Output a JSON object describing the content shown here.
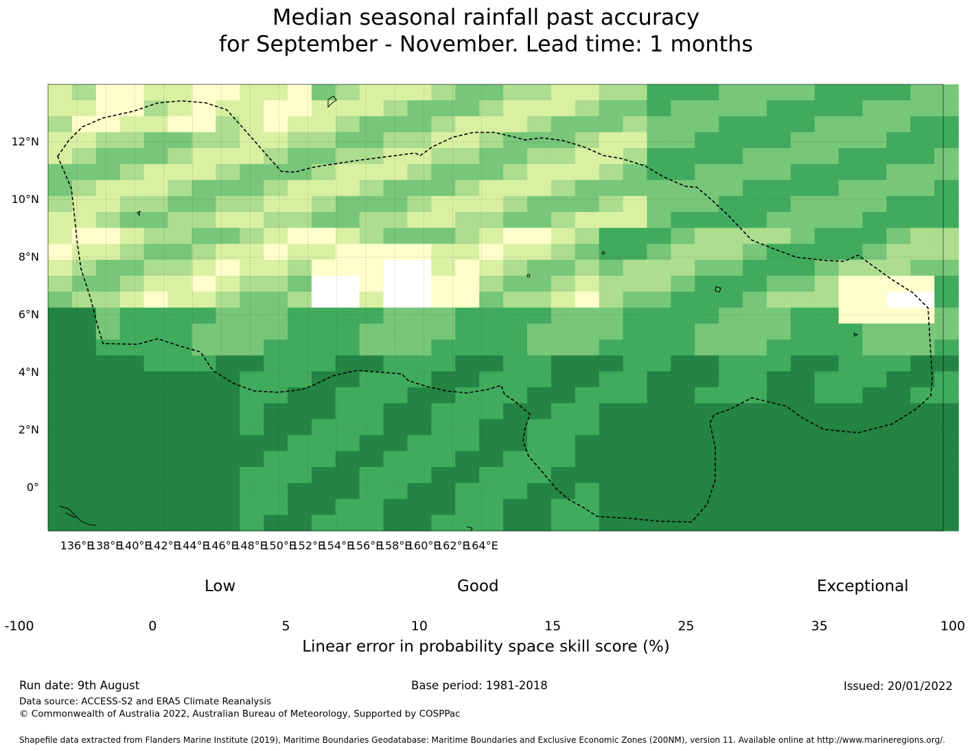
{
  "title": {
    "line1": "Median seasonal rainfall past accuracy",
    "line2": "for September - November. Lead time: 1 months"
  },
  "map": {
    "x_ticks": [
      "136°E",
      "138°E",
      "140°E",
      "142°E",
      "144°E",
      "146°E",
      "148°E",
      "150°E",
      "152°E",
      "154°E",
      "156°E",
      "158°E",
      "160°E",
      "162°E",
      "164°E"
    ],
    "y_ticks": [
      "12°N",
      "10°N",
      "8°N",
      "6°N",
      "4°N",
      "2°N",
      "0°"
    ],
    "grid": true
  },
  "colorbar": {
    "categories": {
      "low": "Low",
      "good": "Good",
      "exceptional": "Exceptional"
    },
    "labels": [
      "-100",
      "0",
      "5",
      "10",
      "15",
      "25",
      "35",
      "100"
    ],
    "colors": [
      "#ffffff",
      "#ffffcc",
      "#d9f0a3",
      "#addd8e",
      "#78c679",
      "#41ab5d",
      "#238443"
    ],
    "title": "Linear error in probability space skill score (%)"
  },
  "footer": {
    "run_date": "Run date: 9th August",
    "base_period": "Base period: 1981-2018",
    "issued": "Issued: 20/01/2022",
    "data_source": "Data source: ACCESS-S2 and ERA5 Climate Reanalysis",
    "copyright": "© Commonwealth of Australia 2022, Australian Bureau of Meteorology, Supported by COSPPac",
    "shapefile": "Shapefile data extracted from Flanders Marine Institute (2019), Maritime Boundaries Geodatabase: Maritime Boundaries and Exclusive Economic Zones (200NM), version 11. Available online at http://www.marineregions.org/."
  }
}
